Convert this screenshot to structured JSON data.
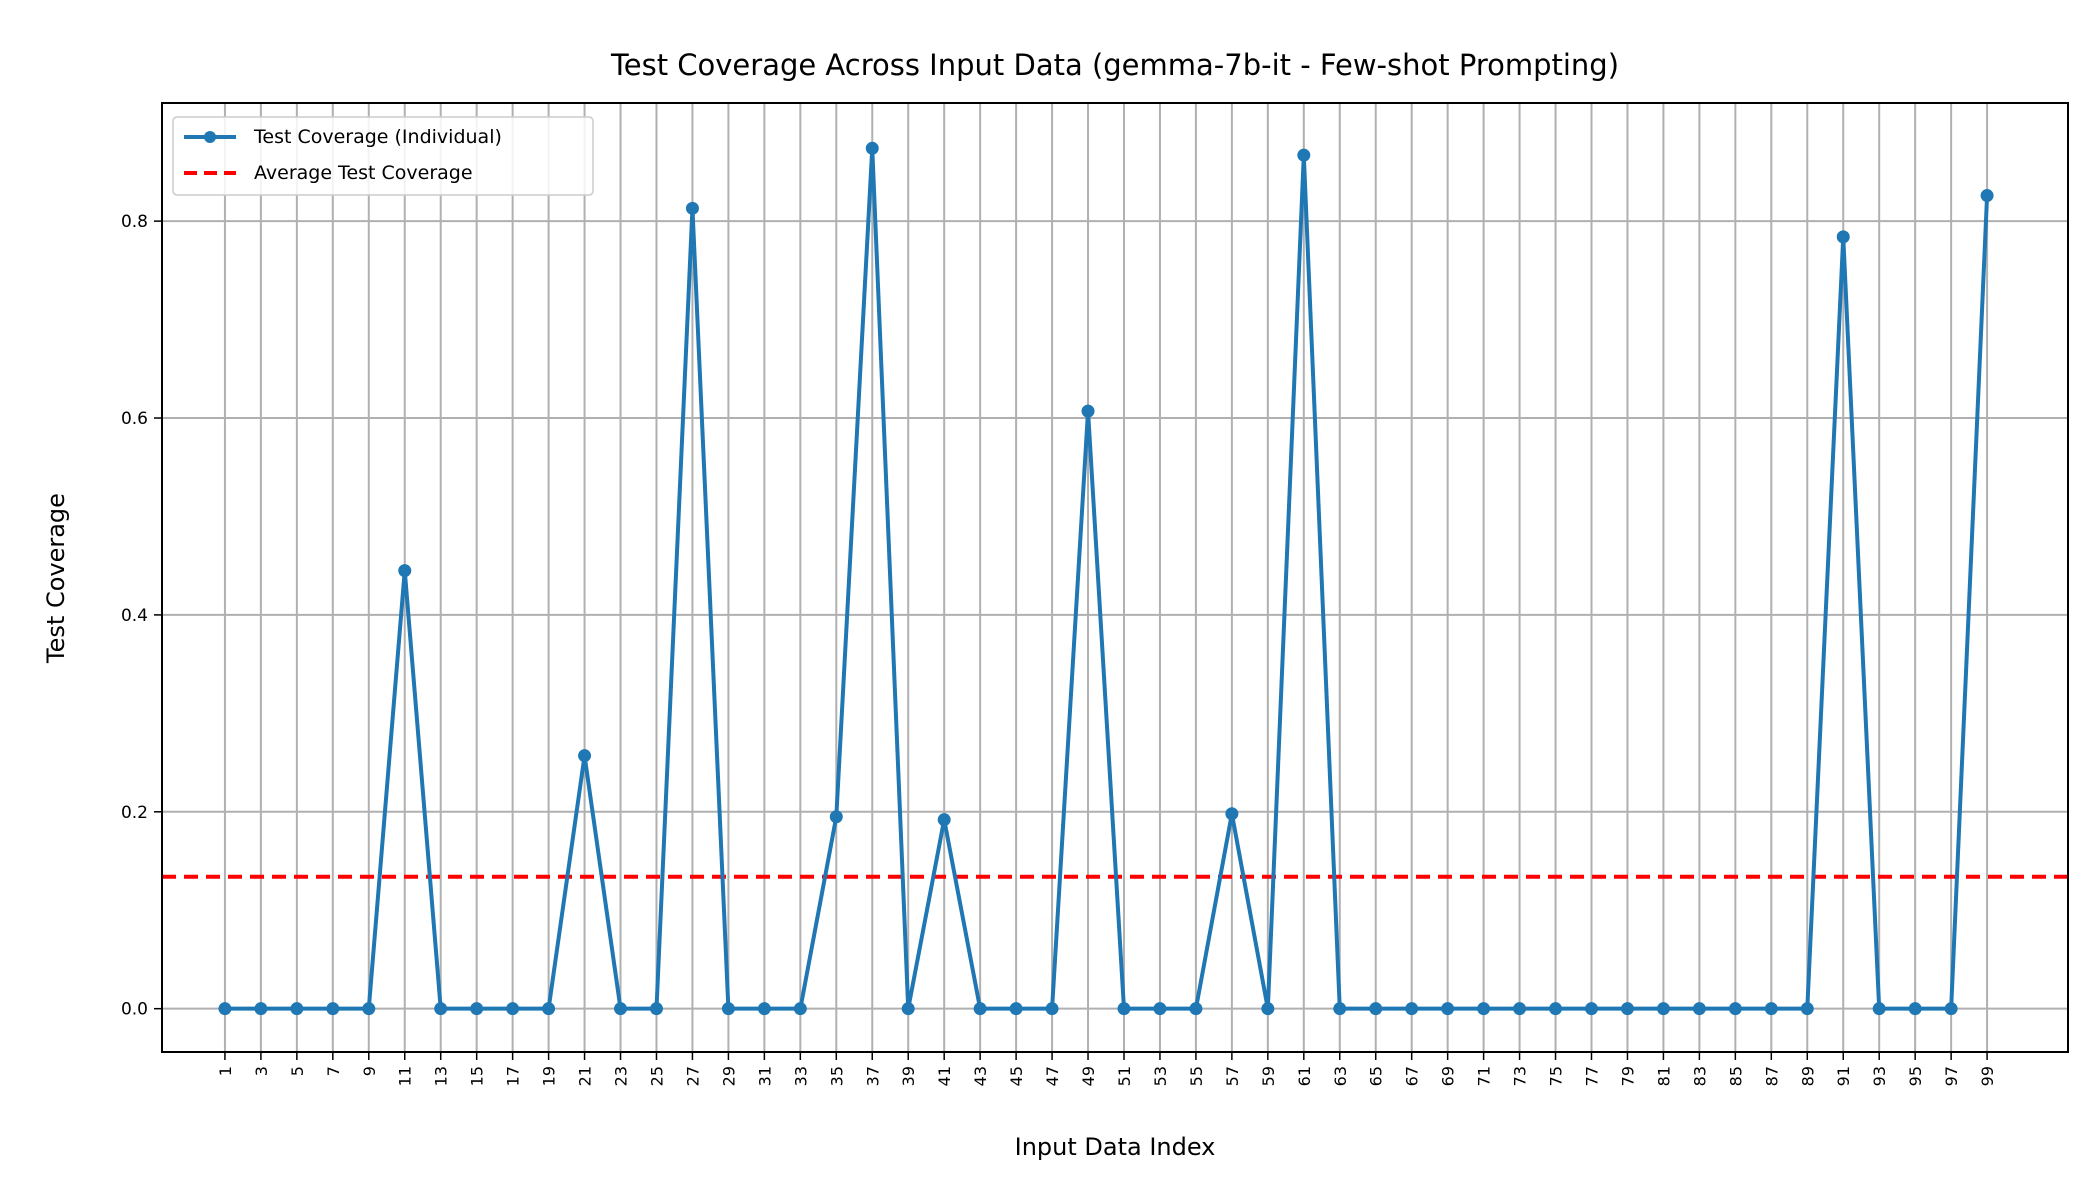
{
  "chart_data": {
    "type": "line",
    "title": "Test Coverage Across Input Data (gemma-7b-it - Few-shot Prompting)",
    "xlabel": "Input Data Index",
    "ylabel": "Test Coverage",
    "x": [
      1,
      3,
      5,
      7,
      9,
      11,
      13,
      15,
      17,
      19,
      21,
      23,
      25,
      27,
      29,
      31,
      33,
      35,
      37,
      39,
      41,
      43,
      45,
      47,
      49,
      51,
      53,
      55,
      57,
      59,
      61,
      63,
      65,
      67,
      69,
      71,
      73,
      75,
      77,
      79,
      81,
      83,
      85,
      87,
      89,
      91,
      93,
      95,
      97,
      99
    ],
    "xticks": [
      "1",
      "3",
      "5",
      "7",
      "9",
      "11",
      "13",
      "15",
      "17",
      "19",
      "21",
      "23",
      "25",
      "27",
      "29",
      "31",
      "33",
      "35",
      "37",
      "39",
      "41",
      "43",
      "45",
      "47",
      "49",
      "51",
      "53",
      "55",
      "57",
      "59",
      "61",
      "63",
      "65",
      "67",
      "69",
      "71",
      "73",
      "75",
      "77",
      "79",
      "81",
      "83",
      "85",
      "87",
      "89",
      "91",
      "93",
      "95",
      "97",
      "99"
    ],
    "yticks": [
      "0.0",
      "0.2",
      "0.4",
      "0.6",
      "0.8"
    ],
    "ytick_values": [
      0.0,
      0.2,
      0.4,
      0.6,
      0.8
    ],
    "ylim": [
      -0.044,
      0.92
    ],
    "xlim": [
      -2.5,
      103.5
    ],
    "series": [
      {
        "name": "Test Coverage (Individual)",
        "color": "#1f77b4",
        "style": "solid-with-markers",
        "values": [
          0,
          0,
          0,
          0,
          0,
          0.445,
          0,
          0,
          0,
          0,
          0.257,
          0,
          0,
          0.813,
          0,
          0,
          0,
          0.195,
          0.874,
          0,
          0.192,
          0,
          0,
          0,
          0.607,
          0,
          0,
          0,
          0.198,
          0,
          0.867,
          0,
          0,
          0,
          0,
          0,
          0,
          0,
          0,
          0,
          0,
          0,
          0,
          0,
          0,
          0.784,
          0,
          0,
          0,
          0.826
        ]
      },
      {
        "name": "Average Test Coverage",
        "color": "#ff0000",
        "style": "dashed",
        "value": 0.134
      }
    ],
    "grid": true,
    "legend_position": "top-left"
  }
}
